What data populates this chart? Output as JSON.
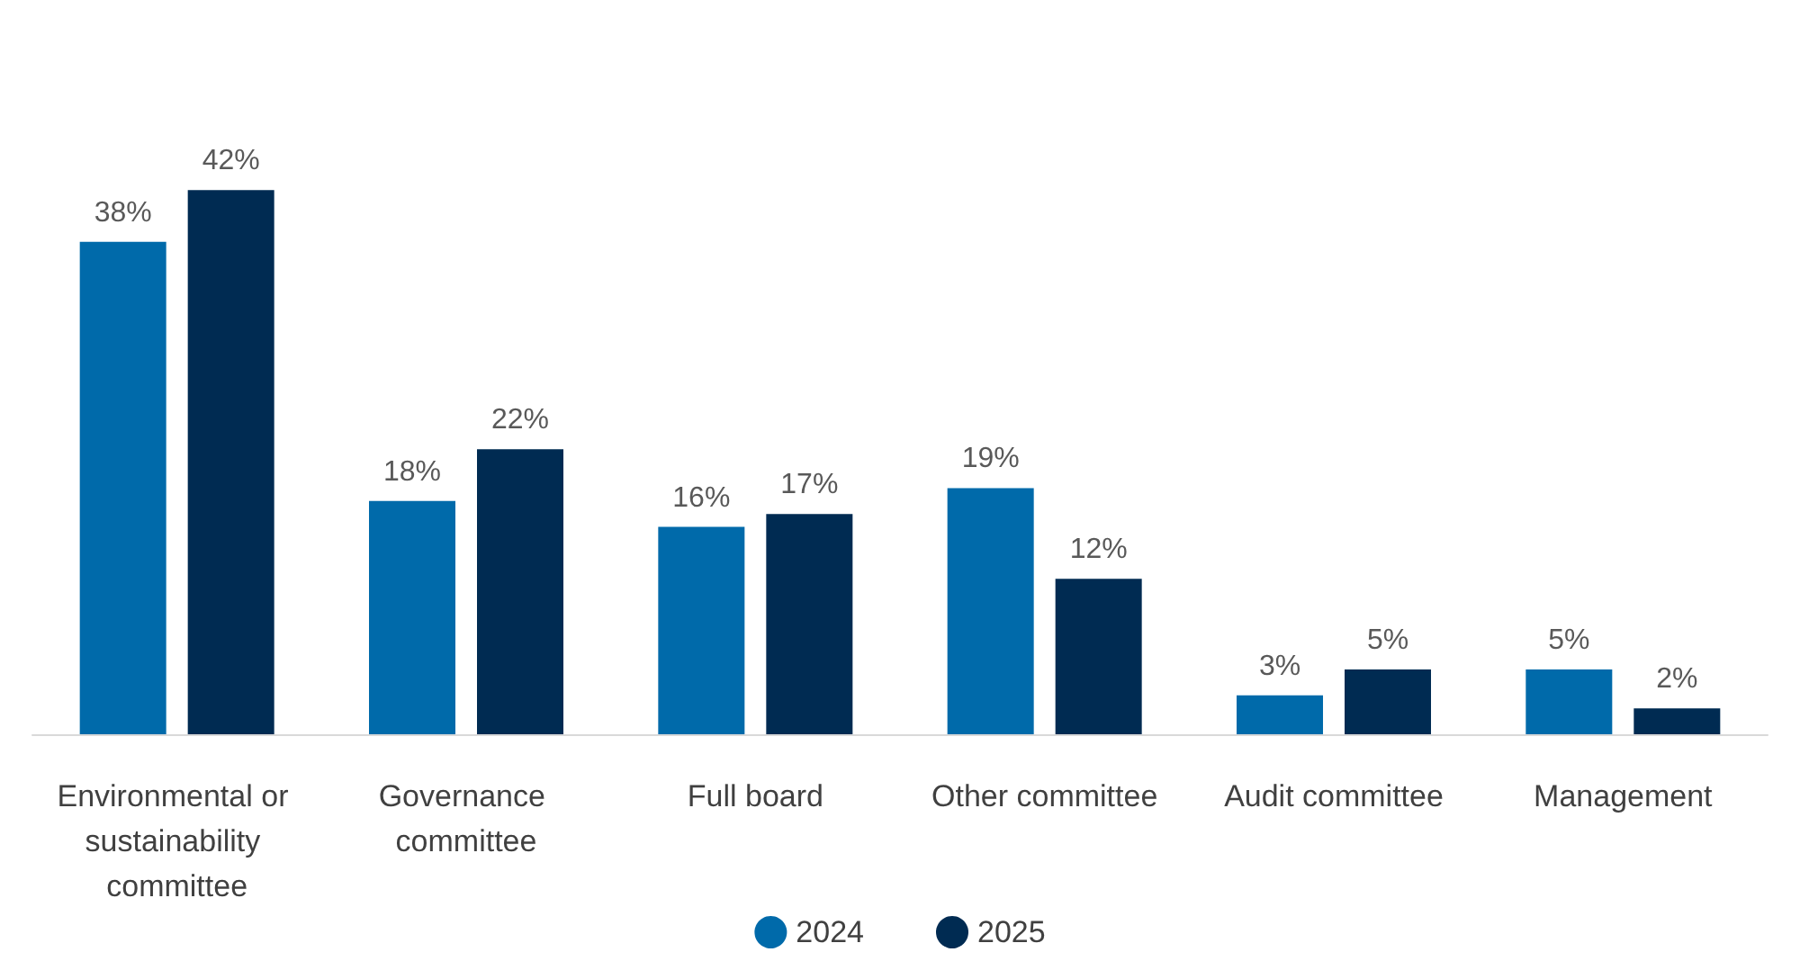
{
  "chart_data": {
    "type": "bar",
    "categories": [
      "Environmental or sustainability committee",
      "Governance committee",
      "Full board",
      "Other committee",
      "Audit committee",
      "Management"
    ],
    "series": [
      {
        "name": "2024",
        "color": "#006aaa",
        "values": [
          38,
          18,
          16,
          19,
          3,
          5
        ],
        "value_labels": [
          "38%",
          "18%",
          "16%",
          "19%",
          "3%",
          "5%"
        ]
      },
      {
        "name": "2025",
        "color": "#002b52",
        "values": [
          42,
          22,
          17,
          12,
          5,
          2
        ],
        "value_labels": [
          "42%",
          "22%",
          "17%",
          "12%",
          "5%",
          "2%"
        ]
      }
    ],
    "legend": "bottom",
    "grid": false
  }
}
